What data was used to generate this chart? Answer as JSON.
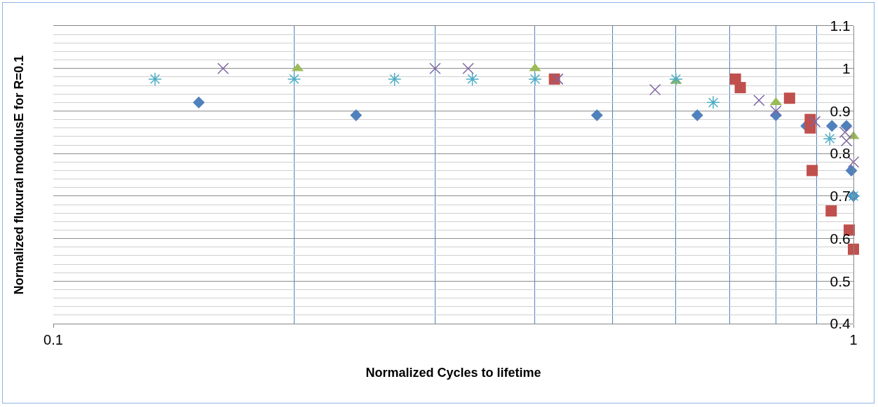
{
  "chart_data": {
    "type": "scatter",
    "xlabel": "Normalized Cycles to lifetime",
    "ylabel": "Normalized fluxural modulusE for R=0.1",
    "log": "x",
    "grid": true,
    "xlim": [
      0.1,
      1
    ],
    "ylim": [
      0.4,
      1.1
    ],
    "xticks": [
      0.1,
      {
        "value": 0.2,
        "label": null
      },
      {
        "value": 0.3,
        "label": null
      },
      {
        "value": 0.4,
        "label": null
      },
      {
        "value": 0.5,
        "label": null
      },
      {
        "value": 0.6,
        "label": null
      },
      {
        "value": 0.7,
        "label": null
      },
      {
        "value": 0.8,
        "label": null
      },
      {
        "value": 0.9,
        "label": null
      },
      1
    ],
    "yticks": [
      0.4,
      {
        "value": 0.42,
        "label": null
      },
      {
        "value": 0.44,
        "label": null
      },
      {
        "value": 0.46,
        "label": null
      },
      {
        "value": 0.48,
        "label": null
      },
      0.5,
      {
        "value": 0.52,
        "label": null
      },
      {
        "value": 0.54,
        "label": null
      },
      {
        "value": 0.56,
        "label": null
      },
      {
        "value": 0.58,
        "label": null
      },
      0.6,
      {
        "value": 0.62,
        "label": null
      },
      {
        "value": 0.64,
        "label": null
      },
      {
        "value": 0.66,
        "label": null
      },
      {
        "value": 0.68,
        "label": null
      },
      0.7,
      {
        "value": 0.72,
        "label": null
      },
      {
        "value": 0.74,
        "label": null
      },
      {
        "value": 0.76,
        "label": null
      },
      {
        "value": 0.78,
        "label": null
      },
      0.8,
      {
        "value": 0.82,
        "label": null
      },
      {
        "value": 0.84,
        "label": null
      },
      {
        "value": 0.86,
        "label": null
      },
      {
        "value": 0.88,
        "label": null
      },
      0.9,
      {
        "value": 0.92,
        "label": null
      },
      {
        "value": 0.94,
        "label": null
      },
      {
        "value": 0.96,
        "label": null
      },
      {
        "value": 0.98,
        "label": null
      },
      1,
      {
        "value": 1.02,
        "label": null
      },
      {
        "value": 1.04,
        "label": null
      },
      {
        "value": 1.06,
        "label": null
      },
      {
        "value": 1.08,
        "label": null
      },
      1.1
    ],
    "series": [
      {
        "color": "#4f81bd",
        "marker": "diamond",
        "x": [
          0.152,
          0.239,
          0.478,
          0.638,
          0.8,
          0.873,
          0.94,
          0.98,
          0.994,
          1
        ],
        "values": [
          0.92,
          0.89,
          0.89,
          0.89,
          0.89,
          0.865,
          0.865,
          0.865,
          0.76,
          0.7
        ]
      },
      {
        "color": "#c0504d",
        "marker": "square",
        "x": [
          0.423,
          0.712,
          0.722,
          0.832,
          0.883,
          0.883,
          0.888,
          0.938,
          0.988,
          1
        ],
        "values": [
          0.975,
          0.975,
          0.955,
          0.93,
          0.88,
          0.86,
          0.76,
          0.665,
          0.62,
          0.575
        ]
      },
      {
        "color": "#9bbb59",
        "marker": "triangle",
        "x": [
          0.202,
          0.4,
          0.6,
          0.8,
          1
        ],
        "values": [
          1,
          1,
          0.97,
          0.92,
          0.84
        ]
      },
      {
        "color": "#8064a2",
        "marker": "cross",
        "x": [
          0.163,
          0.3,
          0.33,
          0.427,
          0.565,
          0.762,
          0.8,
          0.895,
          0.976,
          0.98,
          1
        ],
        "values": [
          1,
          1,
          1,
          0.975,
          0.95,
          0.925,
          0.9,
          0.875,
          0.85,
          0.83,
          0.78
        ]
      },
      {
        "color": "#4bacc6",
        "x": [
          0.134,
          0.2,
          0.267,
          0.334,
          0.4,
          0.6,
          0.668,
          0.934,
          1
        ],
        "values": [
          0.975,
          0.975,
          0.975,
          0.975,
          0.975,
          0.975,
          0.92,
          0.835,
          0.7
        ]
      }
    ]
  }
}
